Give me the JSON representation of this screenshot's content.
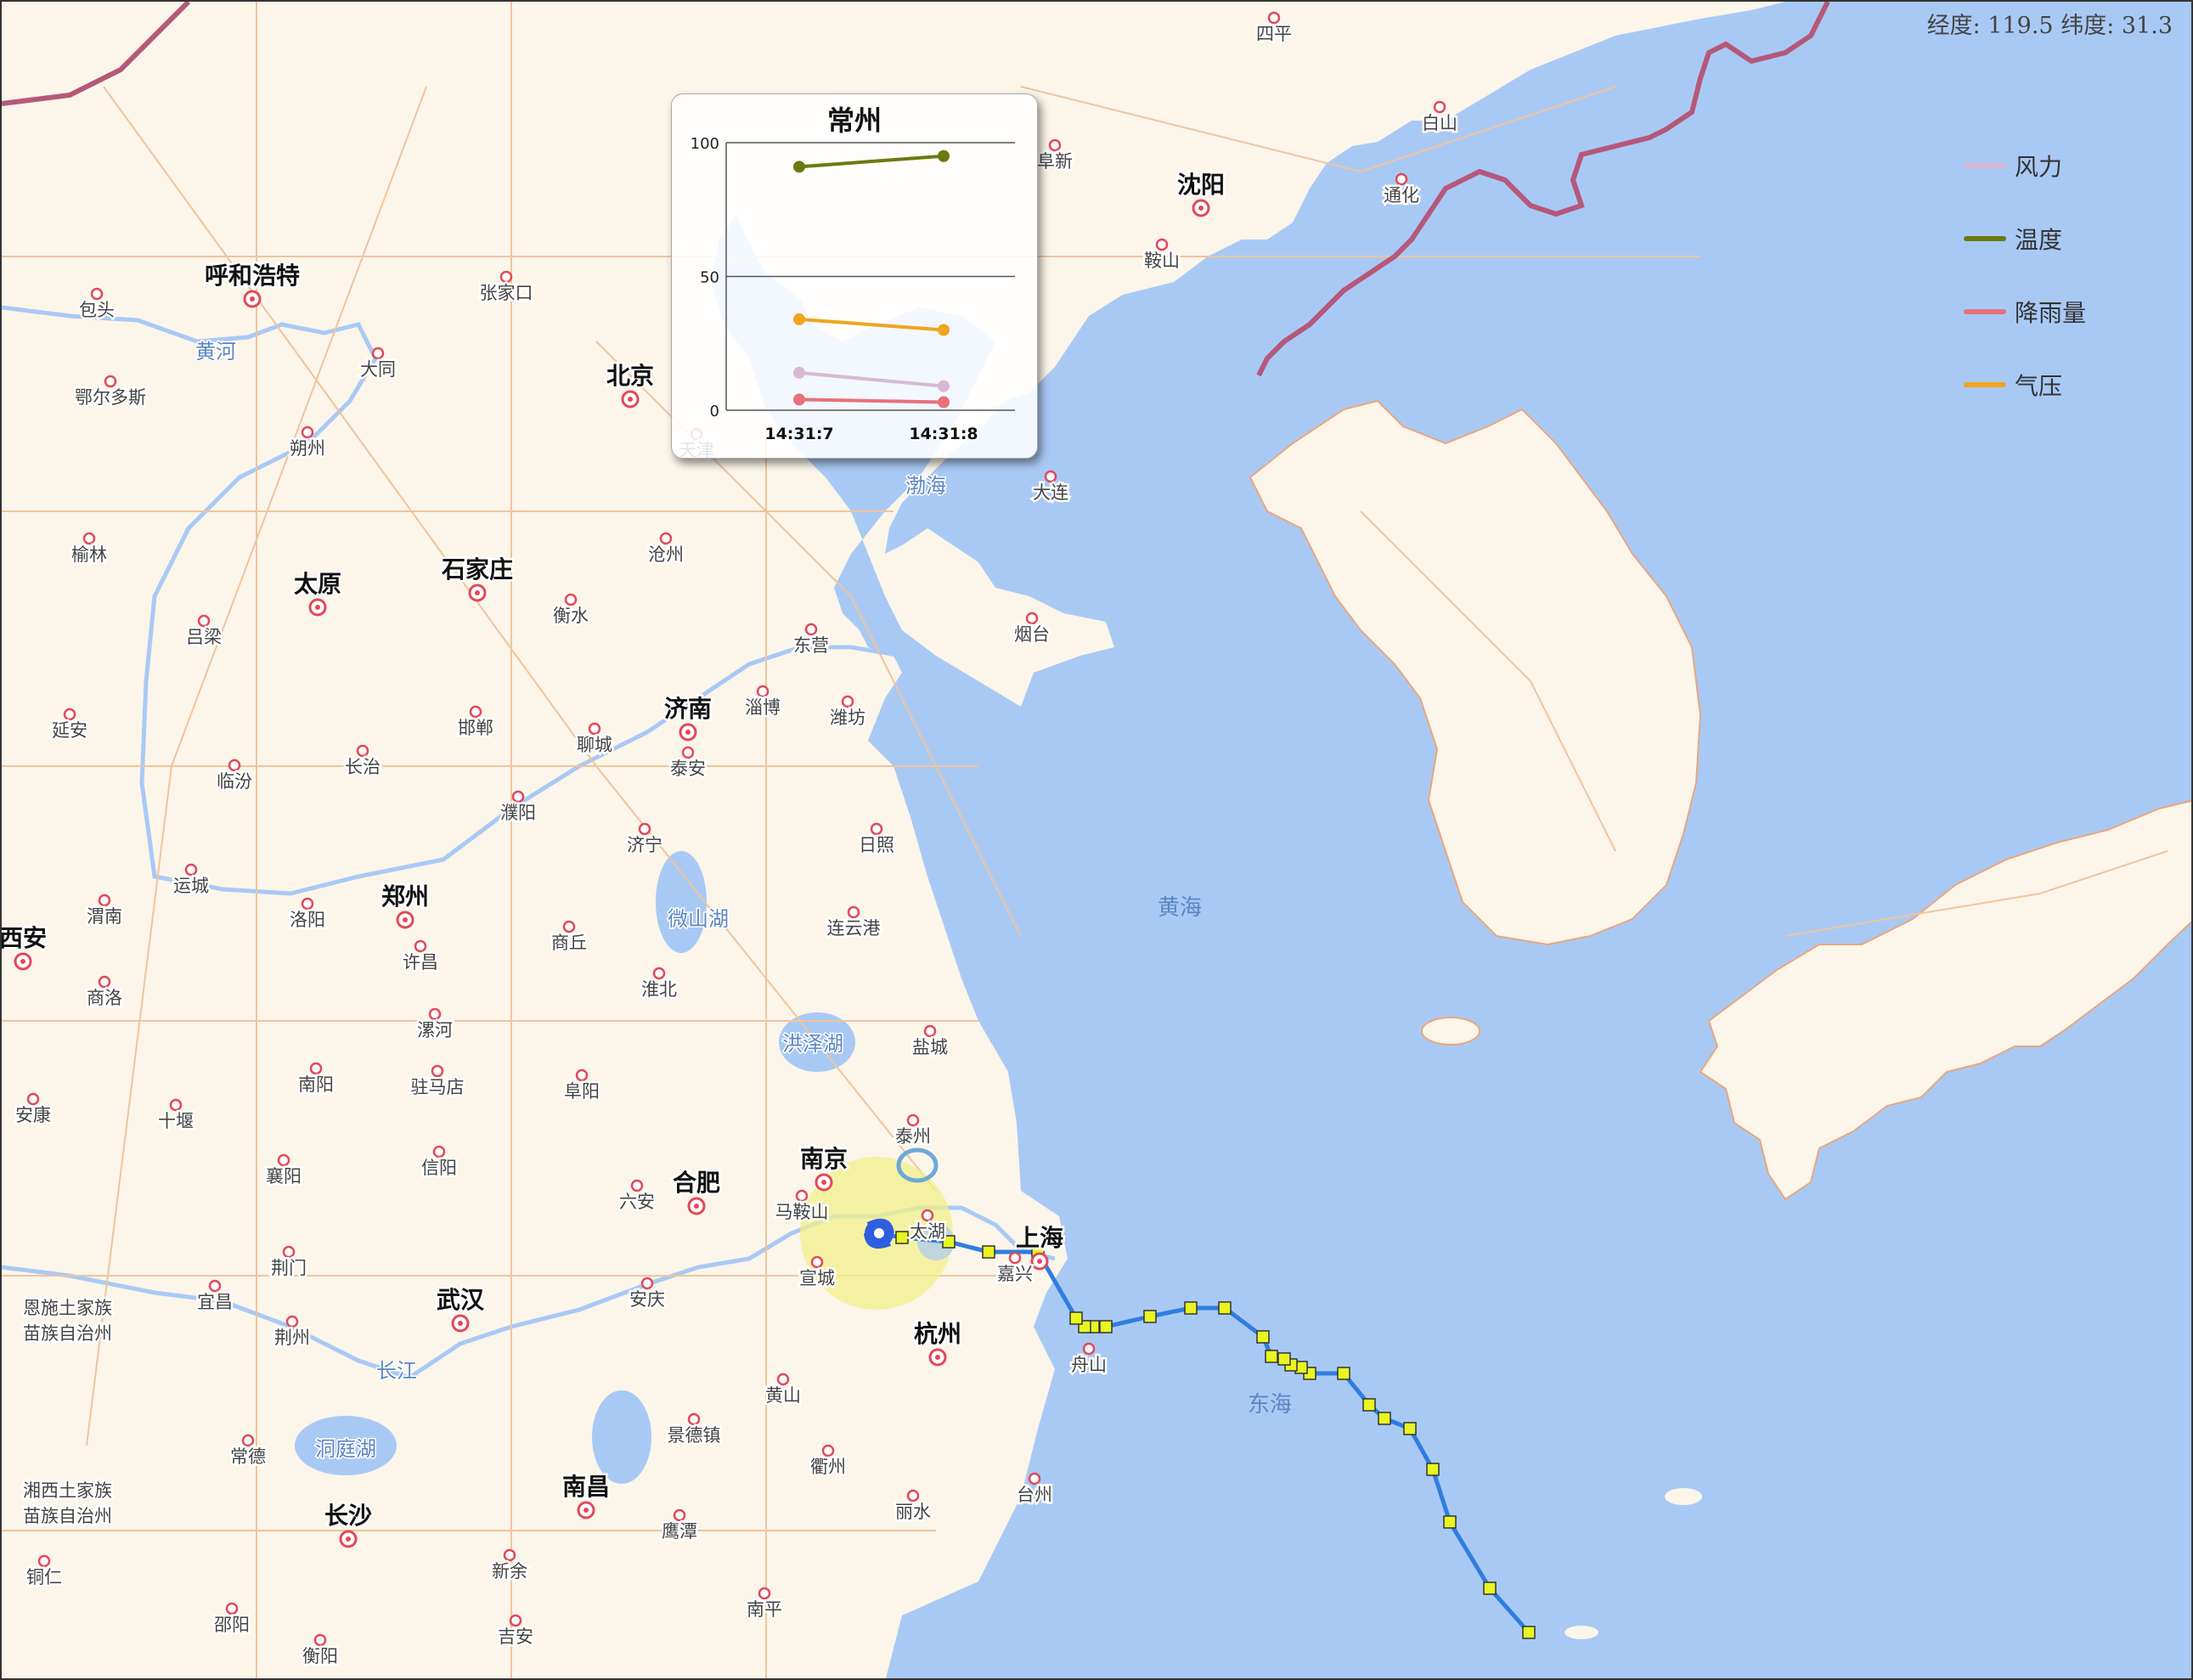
{
  "coord_display": "经度: 119.5 纬度: 31.3",
  "legend": [
    {
      "label": "风力",
      "color": "#d9b8d4"
    },
    {
      "label": "温度",
      "color": "#6b7a12"
    },
    {
      "label": "降雨量",
      "color": "#e8707a"
    },
    {
      "label": "气压",
      "color": "#f0a51e"
    }
  ],
  "popup": {
    "title": "常州",
    "chart_data": {
      "type": "line",
      "categories": [
        "14:31:7",
        "14:31:8"
      ],
      "ylim": [
        0,
        100
      ],
      "yticks": [
        "0",
        "50",
        "100"
      ],
      "series": [
        {
          "name": "温度",
          "color": "#6b7a12",
          "values": [
            91,
            95
          ]
        },
        {
          "name": "气压",
          "color": "#f0a51e",
          "values": [
            34,
            30
          ]
        },
        {
          "name": "风力",
          "color": "#d9b8d4",
          "values": [
            14,
            9
          ]
        },
        {
          "name": "降雨量",
          "color": "#e8707a",
          "values": [
            4,
            3
          ]
        }
      ]
    }
  },
  "map": {
    "major_cities": [
      "北京",
      "呼和浩特",
      "沈阳",
      "太原",
      "石家庄",
      "济南",
      "郑州",
      "西安",
      "合肥",
      "南京",
      "上海",
      "杭州",
      "武汉",
      "南昌",
      "长沙"
    ],
    "minor_cities": [
      "四平",
      "白山",
      "阜新",
      "通化",
      "鞍山",
      "包头",
      "张家口",
      "大同",
      "鄂尔多斯",
      "朔州",
      "天津",
      "大连",
      "榆林",
      "沧州",
      "衡水",
      "吕梁",
      "东营",
      "烟台",
      "淄博",
      "潍坊",
      "邯郸",
      "延安",
      "聊城",
      "长治",
      "泰安",
      "临汾",
      "濮阳",
      "日照",
      "运城",
      "济宁",
      "渭南",
      "洛阳",
      "商丘",
      "连云港",
      "许昌",
      "淮北",
      "商洛",
      "漯河",
      "盐城",
      "驻马店",
      "阜阳",
      "安康",
      "十堰",
      "南阳",
      "泰州",
      "襄阳",
      "信阳",
      "六安",
      "马鞍山",
      "荆门",
      "宣城",
      "嘉兴",
      "宜昌",
      "安庆",
      "荆州",
      "舟山",
      "恩施土家族苗族自治州",
      "黄山",
      "景德镇",
      "常德",
      "衢州",
      "台州",
      "湘西土家族苗族自治州",
      "丽水",
      "铜仁",
      "鹰潭",
      "新余",
      "南平",
      "邵阳",
      "吉安",
      "衡阳",
      "太湖"
    ],
    "water_labels": [
      "黄河",
      "渤海",
      "微山湖",
      "洪泽湖",
      "长江",
      "洞庭湖"
    ],
    "sea_labels": [
      "黄海",
      "东海"
    ],
    "typhoon_track_points": 28
  }
}
